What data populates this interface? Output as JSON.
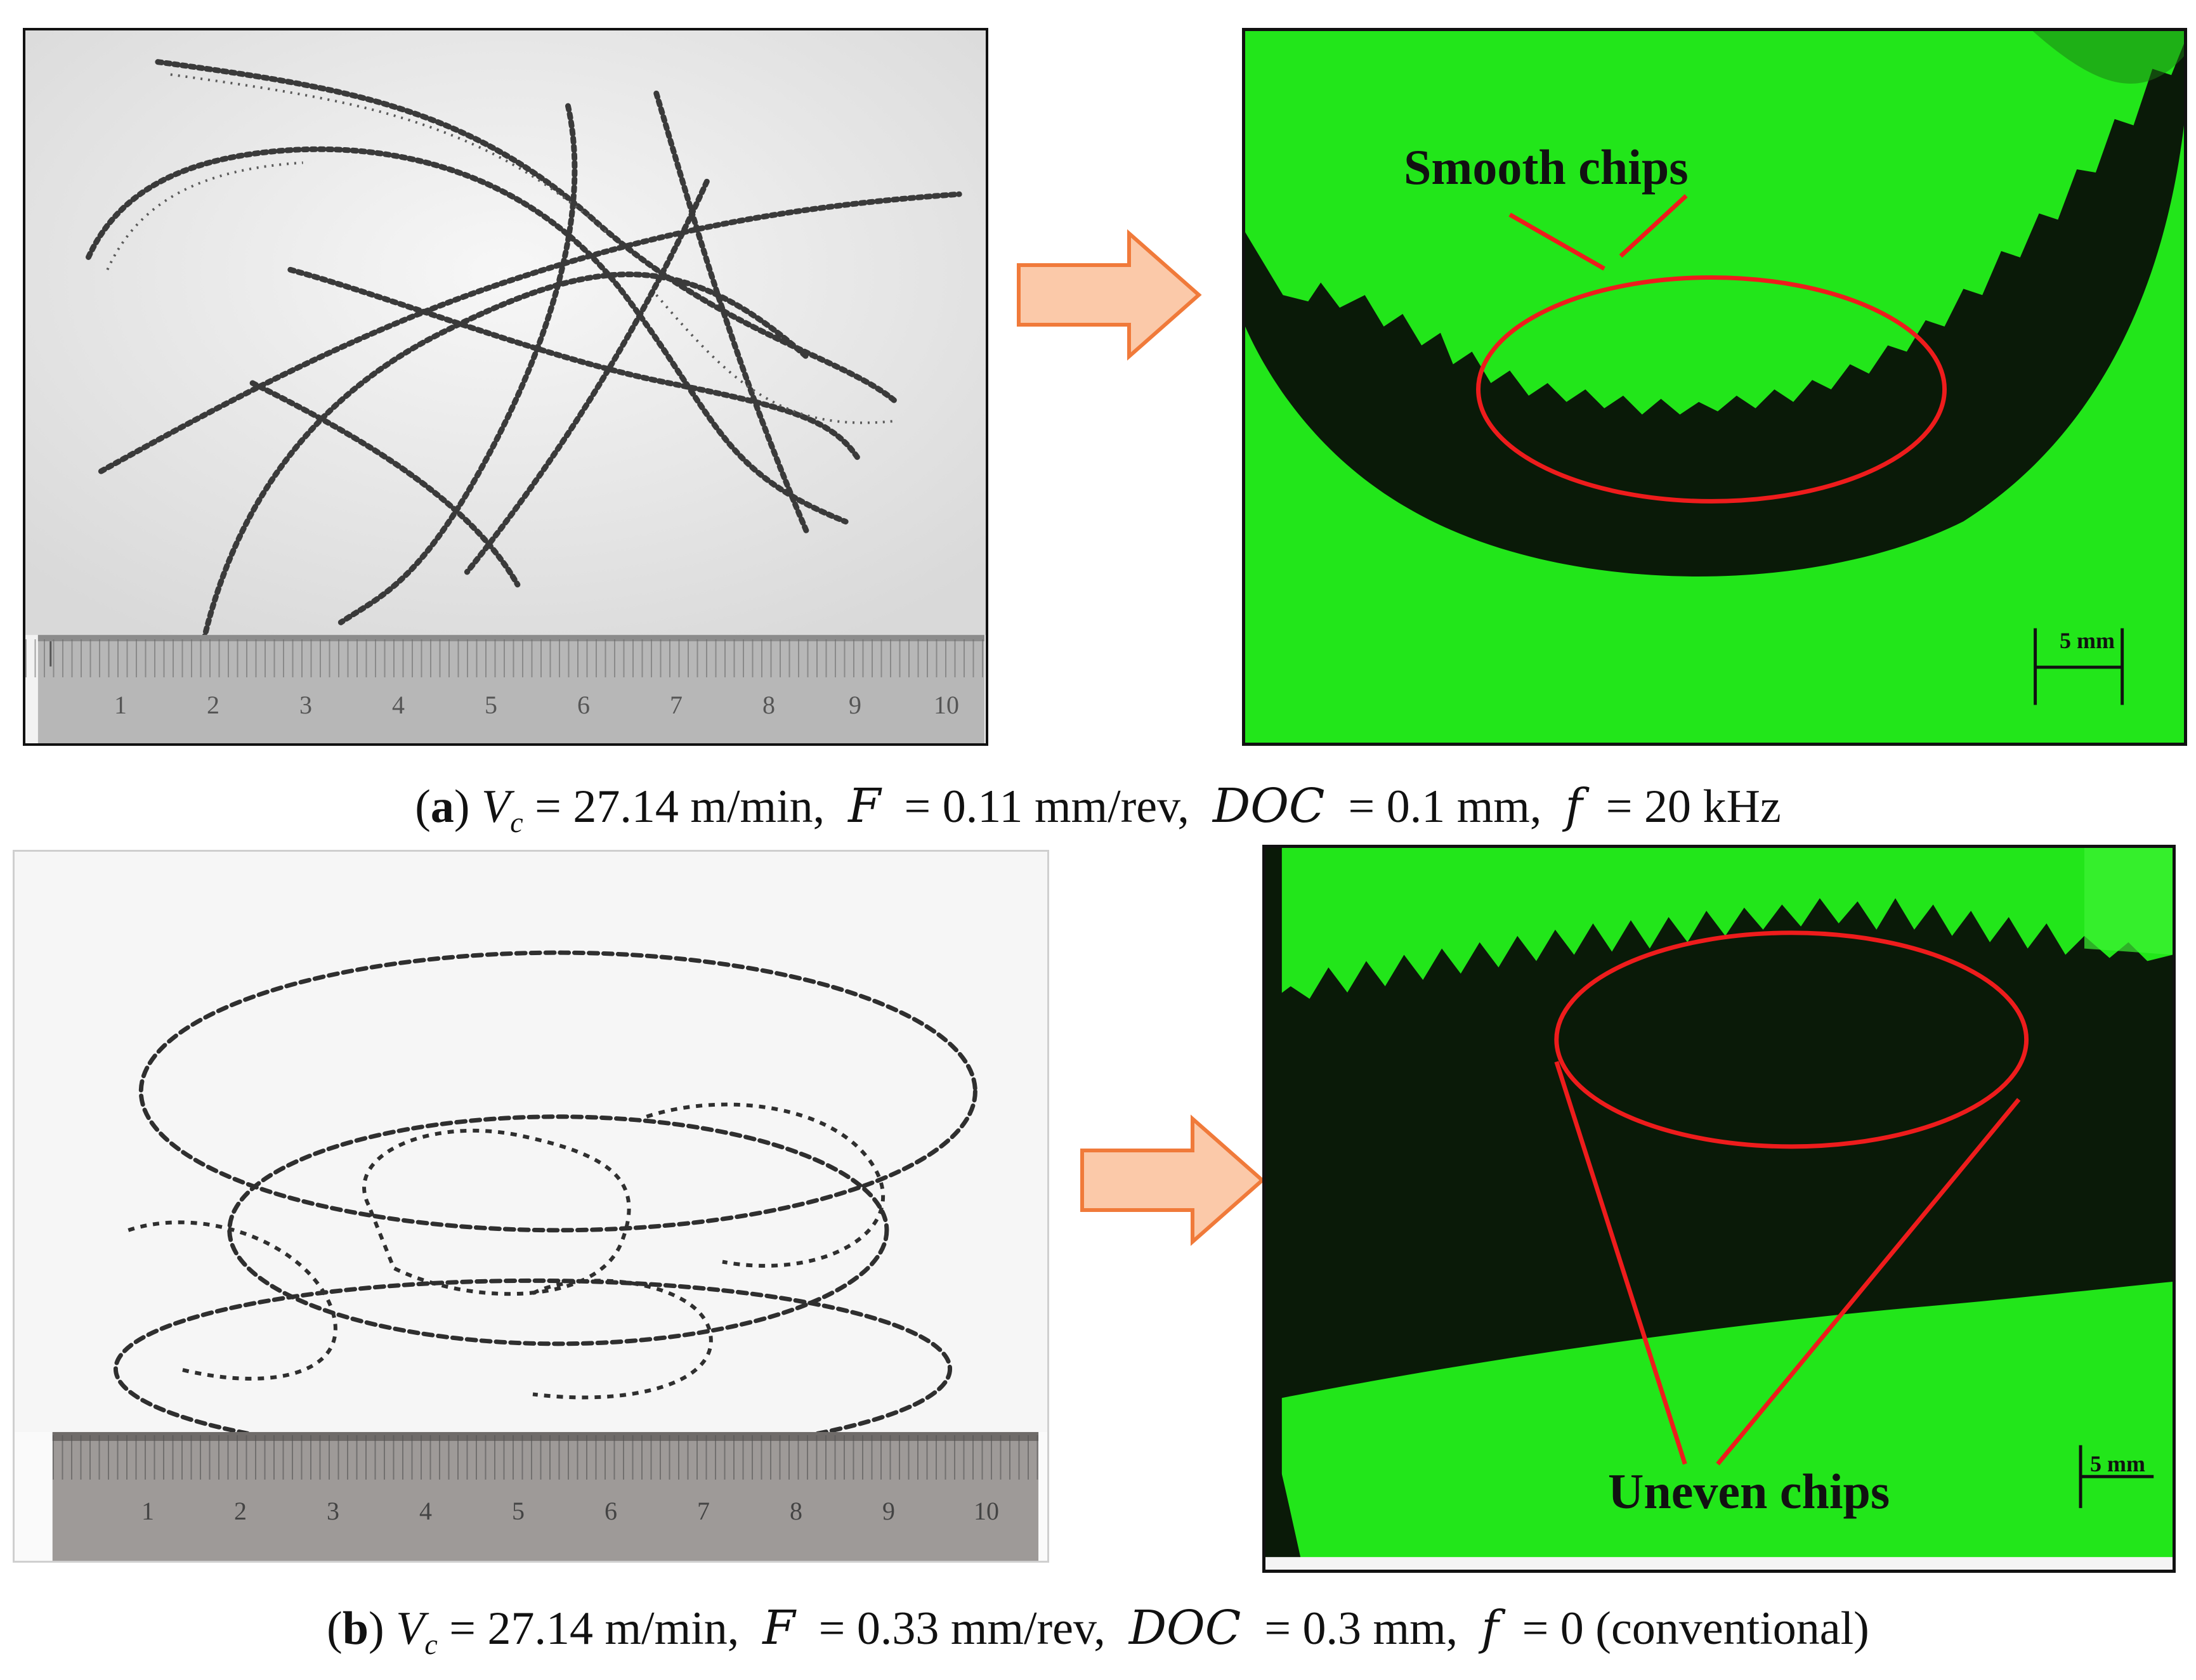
{
  "figure": {
    "panel_a": {
      "label": "a",
      "params": {
        "vc_symbol": "V",
        "vc_sub": "c",
        "vc_value": " = 27.14 m/min,",
        "f_symbol": "F",
        "f_value": " = 0.11 mm/rev,",
        "doc_symbol": "DOC",
        "doc_value": " = 0.1 mm,",
        "freq_symbol": "f",
        "freq_value": " = 20 kHz"
      },
      "photo_ruler_ticks": [
        "1",
        "2",
        "3",
        "4",
        "5",
        "6",
        "7",
        "8",
        "9",
        "10"
      ],
      "callout": "Smooth chips",
      "scale_label": "5 mm"
    },
    "panel_b": {
      "label": "b",
      "params": {
        "vc_symbol": "V",
        "vc_sub": "c",
        "vc_value": " = 27.14 m/min,",
        "f_symbol": "F",
        "f_value": " = 0.33 mm/rev,",
        "doc_symbol": "DOC",
        "doc_value": " = 0.3 mm,",
        "freq_symbol": "f",
        "freq_value": " = 0 (conventional)"
      },
      "photo_ruler_ticks": [
        "1",
        "2",
        "3",
        "4",
        "5",
        "6",
        "7",
        "8",
        "9",
        "10"
      ],
      "callout": "Uneven chips",
      "scale_label": "5 mm"
    },
    "colors": {
      "micrograph_green": "#22e61a",
      "micrograph_dark": "#0a1a08",
      "callout_red": "#ee1c1c",
      "arrow_fill": "#fbc9a9",
      "arrow_stroke": "#f07a3a"
    }
  }
}
